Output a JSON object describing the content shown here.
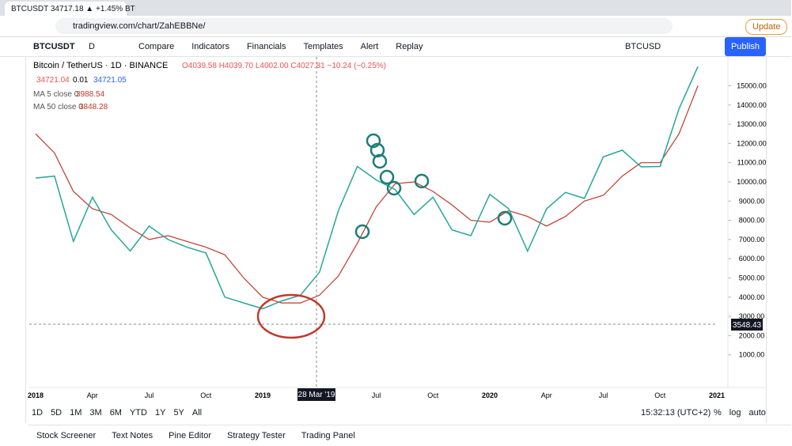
{
  "browser": {
    "tab_title": "BTCUSDT 34717.18 ▲ +1.45% BT",
    "url": "tradingview.com/chart/ZahEBBNe/",
    "update": "Update"
  },
  "toolbar": {
    "symbol": "BTCUSDT",
    "interval": "D",
    "items": [
      "Compare",
      "Indicators",
      "Financials",
      "Templates",
      "Alert",
      "Replay"
    ],
    "right_symbol": "BTCUSD",
    "publish": "Publish"
  },
  "legend": {
    "ohlc": "O4039.58 H4039.70 L4002.00 C4027.81 −10.24 (−0.25%)",
    "bid": "34721.04",
    "spread": "0.01",
    "ask": "34721.05",
    "ma5": "MA 5 close 0",
    "ma5_value": "3988.54",
    "ma50_value": "3848.28"
  },
  "crosshair": {
    "date_label": "28 Mar '19",
    "price_label": "3548.43"
  },
  "bottom_bar": {
    "ranges": [
      "1D",
      "5D",
      "1M",
      "3M",
      "6M",
      "YTD",
      "1Y",
      "5Y",
      "All"
    ],
    "time": "15:32:13 (UTC+2)",
    "scale": [
      "%",
      "log",
      "auto"
    ]
  },
  "panel_tabs": [
    "Stock Screener",
    "Text Notes",
    "Pine Editor",
    "Strategy Tester",
    "Trading Panel"
  ],
  "chart_data": {
    "type": "line",
    "categories": [
      "2018",
      null,
      null,
      "Apr",
      null,
      null,
      "Jul",
      null,
      null,
      "Oct",
      null,
      null,
      "2019",
      null,
      null,
      null,
      null,
      null,
      "Jul",
      null,
      null,
      "Oct",
      null,
      null,
      "2020",
      null,
      null,
      "Apr",
      null,
      null,
      "Jul",
      null,
      null,
      "Oct",
      null,
      null,
      "2021"
    ],
    "series": [
      {
        "name": "Bitcoin / TetherUS · 1D · BINANCE",
        "color": "#26a69a",
        "values": [
          10200,
          10300,
          6900,
          9200,
          7500,
          6400,
          7700,
          7000,
          6600,
          6300,
          4000,
          3700,
          3400,
          3800,
          4100,
          5300,
          8500,
          10800,
          10100,
          9600,
          8300,
          9200,
          7500,
          7200,
          9350,
          8600,
          6400,
          8600,
          9450,
          9140,
          11300,
          11650,
          10780,
          10800,
          13800,
          16000,
          null
        ]
      },
      {
        "name": "MA 50 close 0",
        "color": "#c0392b",
        "values": [
          12500,
          11500,
          9500,
          8600,
          8300,
          7600,
          7000,
          7200,
          6900,
          6600,
          6200,
          5000,
          4000,
          3700,
          3700,
          4100,
          5100,
          6800,
          8700,
          9900,
          10000,
          9500,
          8800,
          8000,
          7900,
          8500,
          8200,
          7700,
          8200,
          9000,
          9300,
          10300,
          11000,
          11000,
          12500,
          15000,
          null
        ]
      }
    ],
    "ylim": [
      -700,
      16500
    ],
    "yticks": [
      {
        "value": 1000,
        "label": "1000.00"
      },
      {
        "value": 2000,
        "label": "2000.00"
      },
      {
        "value": 3000,
        "label": "3000.00"
      },
      {
        "value": 4000,
        "label": "4000.00"
      },
      {
        "value": 5000,
        "label": "5000.00"
      },
      {
        "value": 6000,
        "label": "6000.00"
      },
      {
        "value": 7000,
        "label": "7000.00"
      },
      {
        "value": 8000,
        "label": "8000.00"
      },
      {
        "value": 9000,
        "label": "9000.00"
      },
      {
        "value": 10000,
        "label": "10000.00"
      },
      {
        "value": 11000,
        "label": "11000.00"
      },
      {
        "value": 12000,
        "label": "12000.00"
      },
      {
        "value": 13000,
        "label": "13000.00"
      },
      {
        "value": 14000,
        "label": "14000.00"
      },
      {
        "value": 15000,
        "label": "15000.00"
      }
    ],
    "grid": false
  }
}
